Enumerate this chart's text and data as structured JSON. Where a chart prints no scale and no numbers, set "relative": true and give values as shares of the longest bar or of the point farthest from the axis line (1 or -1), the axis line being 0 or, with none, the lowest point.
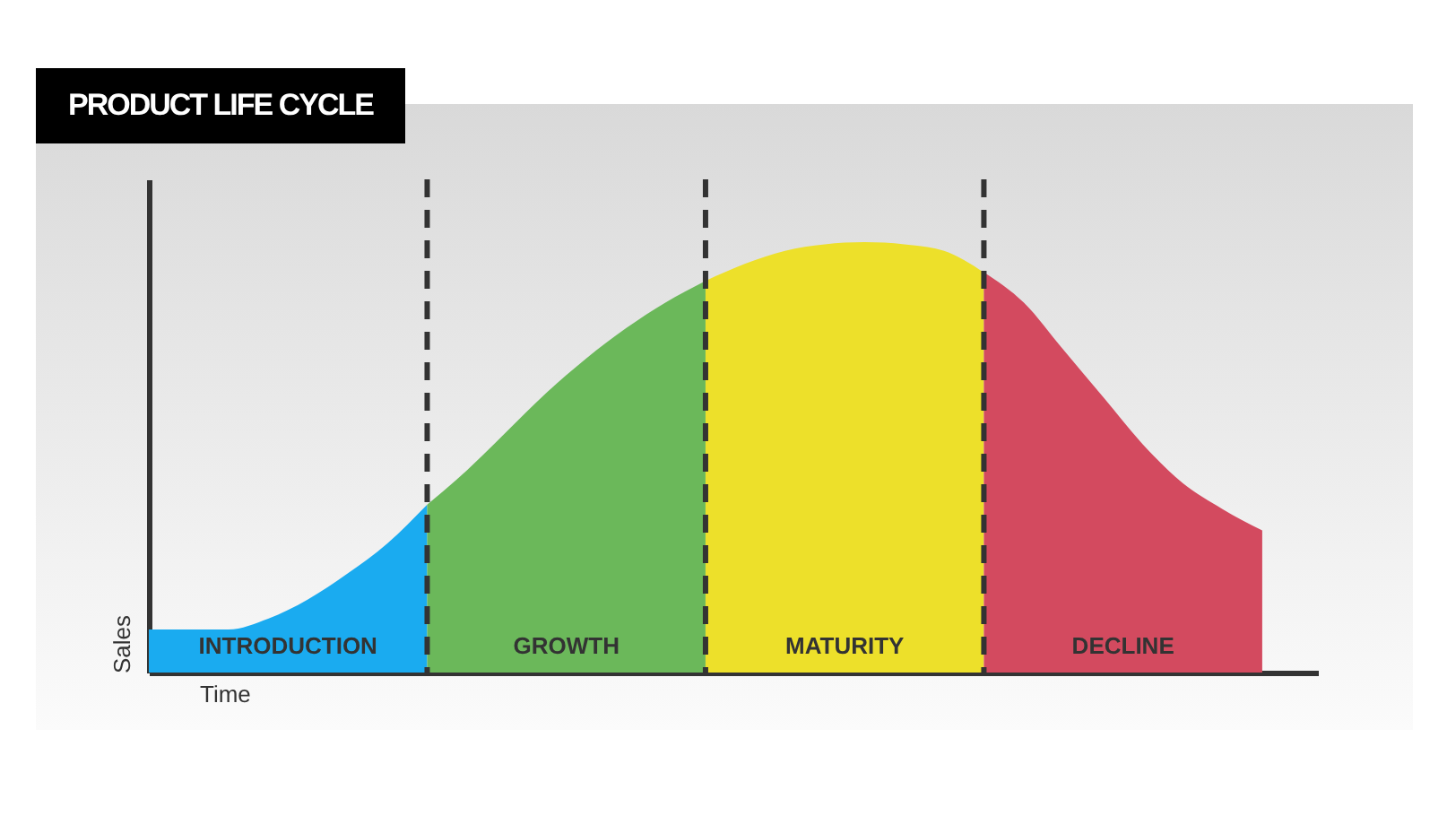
{
  "chart_data": {
    "type": "area",
    "title": "PRODUCT LIFE CYCLE",
    "xlabel": "Time",
    "ylabel": "Sales",
    "relative": true,
    "grid": "x",
    "categories": [
      null,
      null,
      null,
      null,
      null,
      null,
      null,
      null,
      null,
      null,
      null,
      null,
      null,
      null,
      null,
      null,
      null,
      null,
      null,
      null,
      null,
      null,
      null,
      null,
      null,
      null,
      null,
      null,
      null
    ],
    "series": [
      {
        "name": "INTRODUCTION",
        "color": "#1aabf0",
        "values": [
          0.1,
          0.1,
          0.1,
          0.125,
          0.17,
          0.23,
          0.3,
          0.39,
          null,
          null,
          null,
          null,
          null,
          null,
          null,
          null,
          null,
          null,
          null,
          null,
          null,
          null,
          null,
          null,
          null,
          null,
          null,
          null,
          null
        ]
      },
      {
        "name": "GROWTH",
        "color": "#6bb85a",
        "values": [
          null,
          null,
          null,
          null,
          null,
          null,
          null,
          0.39,
          0.47,
          0.56,
          0.65,
          0.73,
          0.8,
          0.86,
          0.91,
          null,
          null,
          null,
          null,
          null,
          null,
          null,
          null,
          null,
          null,
          null,
          null,
          null,
          null
        ]
      },
      {
        "name": "MATURITY",
        "color": "#ede02a",
        "values": [
          null,
          null,
          null,
          null,
          null,
          null,
          null,
          null,
          null,
          null,
          null,
          null,
          null,
          null,
          0.91,
          0.95,
          0.98,
          0.995,
          1,
          0.995,
          0.98,
          0.93,
          null,
          null,
          null,
          null,
          null,
          null,
          null
        ]
      },
      {
        "name": "DECLINE",
        "color": "#d34a5f",
        "values": [
          null,
          null,
          null,
          null,
          null,
          null,
          null,
          null,
          null,
          null,
          null,
          null,
          null,
          null,
          null,
          null,
          null,
          null,
          null,
          null,
          null,
          0.93,
          0.86,
          0.75,
          0.64,
          0.53,
          0.44,
          0.38,
          0.33
        ]
      }
    ]
  }
}
